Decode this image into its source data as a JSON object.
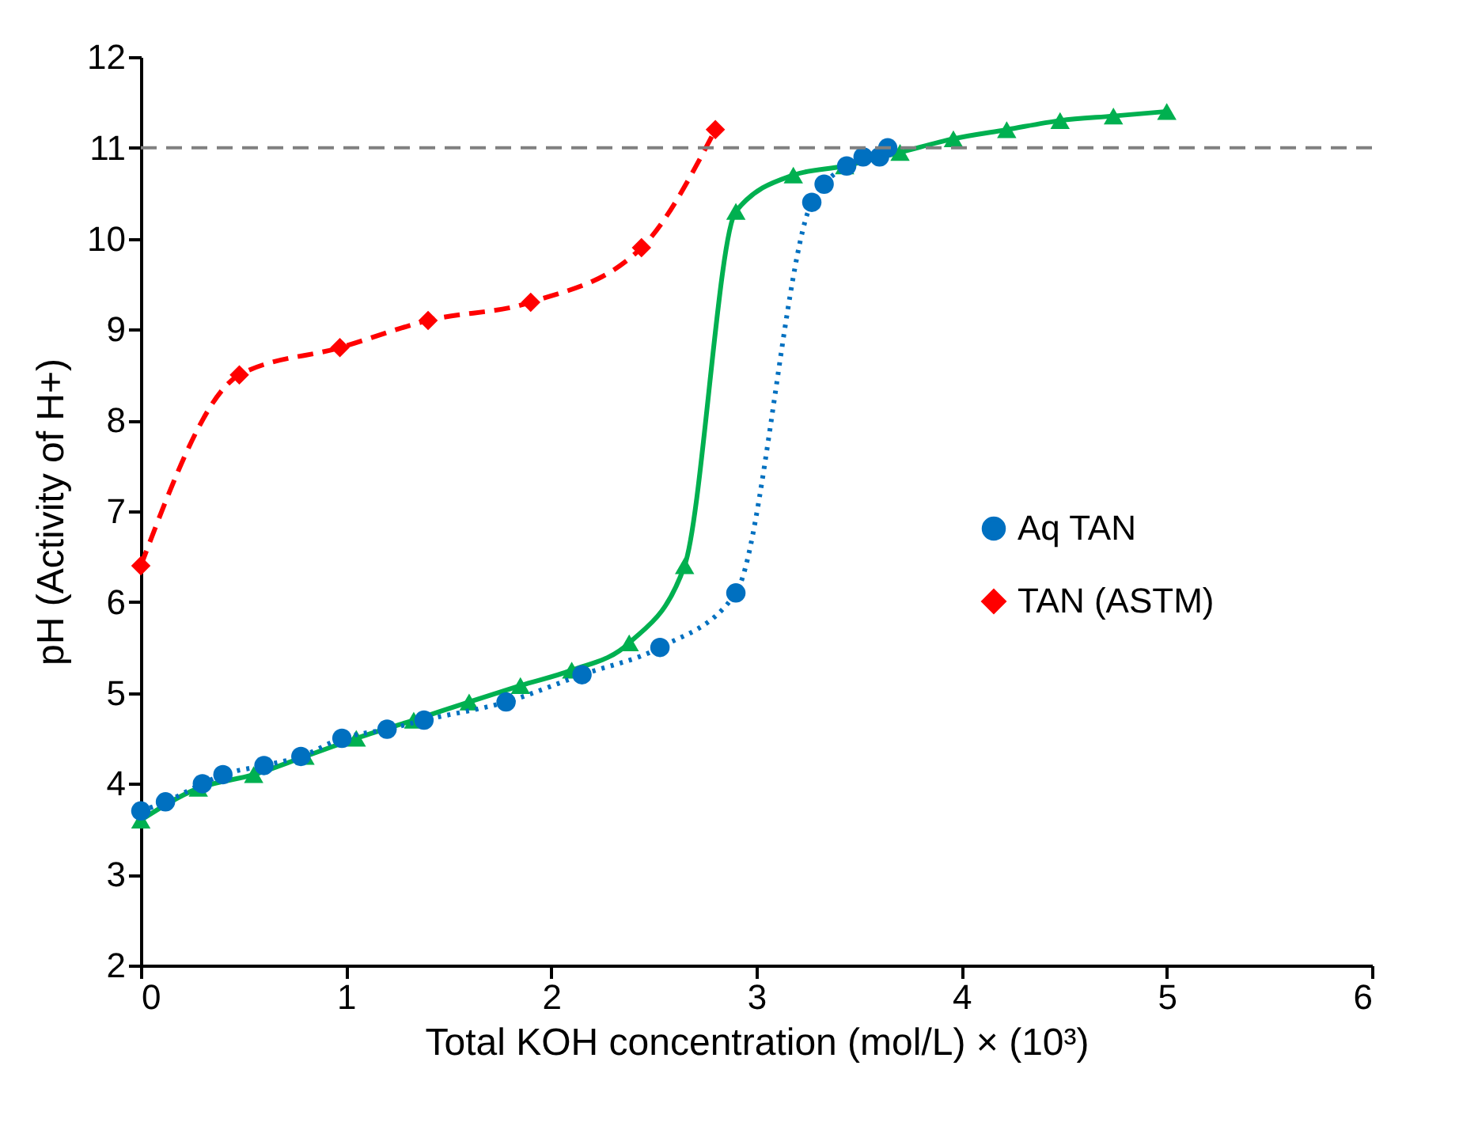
{
  "chart_data": {
    "type": "line",
    "xlabel": "Total  KOH concentration  (mol/L) × (10³)",
    "ylabel": "pH (Activity of H+)",
    "xlim": [
      0,
      6
    ],
    "xticks": [
      0,
      1,
      2,
      3,
      4,
      5,
      6
    ],
    "ylim": [
      2,
      12
    ],
    "yticks": [
      2,
      3,
      4,
      5,
      6,
      7,
      8,
      9,
      10,
      11,
      12
    ],
    "grid": false,
    "legend": "right",
    "series": [
      {
        "color": "#00b050",
        "marker": "triangle",
        "line_style": "solid",
        "x": [
          0,
          0.28,
          0.55,
          0.8,
          1.05,
          1.33,
          1.6,
          1.85,
          2.1,
          2.38,
          2.65,
          2.9,
          3.18,
          3.43,
          3.7,
          3.96,
          4.22,
          4.48,
          4.74,
          5.0
        ],
        "values": [
          3.6,
          3.95,
          4.1,
          4.3,
          4.5,
          4.7,
          4.9,
          5.08,
          5.25,
          5.55,
          6.4,
          10.3,
          10.7,
          10.8,
          10.95,
          11.1,
          11.2,
          11.3,
          11.35,
          11.4
        ]
      },
      {
        "name": "Aq TAN",
        "color": "#0070c0",
        "marker": "circle",
        "line_style": "dotted",
        "x": [
          0,
          0.12,
          0.3,
          0.4,
          0.6,
          0.78,
          0.98,
          1.2,
          1.38,
          1.78,
          2.15,
          2.53,
          2.9,
          3.27,
          3.33,
          3.44,
          3.52,
          3.6,
          3.64
        ],
        "values": [
          3.7,
          3.8,
          4.0,
          4.1,
          4.2,
          4.3,
          4.5,
          4.6,
          4.7,
          4.9,
          5.2,
          5.5,
          6.1,
          10.4,
          10.6,
          10.8,
          10.9,
          10.9,
          11.0
        ]
      },
      {
        "name": "TAN (ASTM)",
        "color": "#ff0000",
        "marker": "diamond",
        "line_style": "dashed",
        "x": [
          0,
          0.48,
          0.97,
          1.4,
          1.9,
          2.44,
          2.8
        ],
        "values": [
          6.4,
          8.5,
          8.8,
          9.1,
          9.3,
          9.9,
          11.2
        ]
      }
    ],
    "ref_lines": [
      {
        "axis": "y",
        "value": 11,
        "color": "#808080",
        "line_style": "dashed"
      }
    ]
  }
}
